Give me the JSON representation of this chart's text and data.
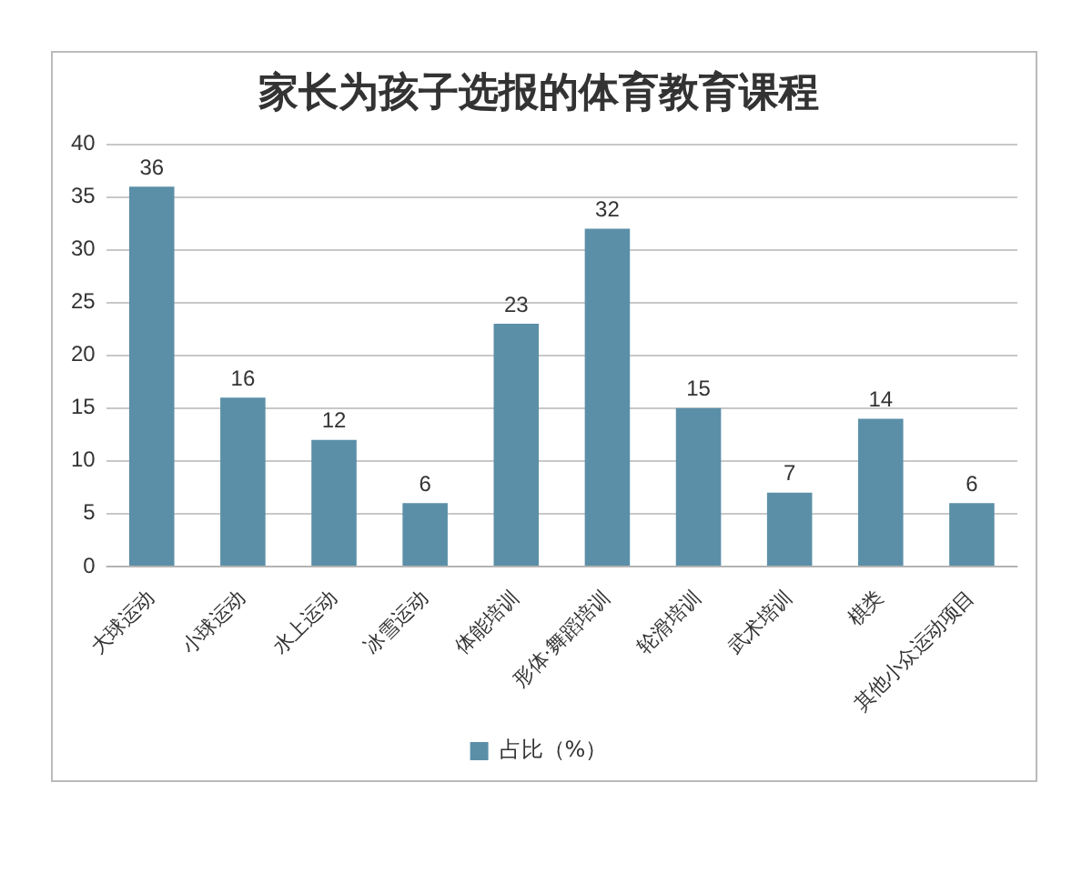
{
  "chart_data": {
    "type": "bar",
    "title": "家长为孩子选报的体育教育课程",
    "categories": [
      "大球运动",
      "小球运动",
      "水上运动",
      "冰雪运动",
      "体能培训",
      "形体·舞蹈培训",
      "轮滑培训",
      "武术培训",
      "棋类",
      "其他小众运动项目"
    ],
    "series": [
      {
        "name": "占比（%）",
        "color": "#5b8fa8",
        "values": [
          36,
          16,
          12,
          6,
          23,
          32,
          15,
          7,
          14,
          6
        ]
      }
    ],
    "ylim": [
      0,
      40
    ],
    "yticks": [
      0,
      5,
      10,
      15,
      20,
      25,
      30,
      35,
      40
    ],
    "grid": "y",
    "legend": "bottom",
    "data_labels": true
  }
}
